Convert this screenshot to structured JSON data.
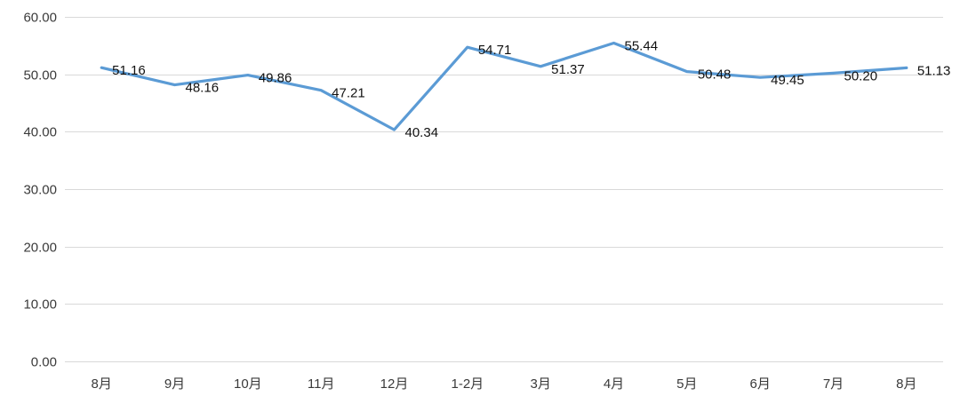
{
  "chart_data": {
    "type": "line",
    "title": "",
    "xlabel": "",
    "ylabel": "",
    "categories": [
      "8月",
      "9月",
      "10月",
      "11月",
      "12月",
      "1-2月",
      "3月",
      "4月",
      "5月",
      "6月",
      "7月",
      "8月"
    ],
    "series": [
      {
        "values": [
          51.16,
          48.16,
          49.86,
          47.21,
          40.34,
          54.71,
          51.37,
          55.44,
          50.48,
          49.45,
          50.2,
          51.13
        ],
        "labels": [
          "51.16",
          "48.16",
          "49.86",
          "47.21",
          "40.34",
          "54.71",
          "51.37",
          "55.44",
          "50.48",
          "49.45",
          "50.20",
          "51.13"
        ]
      }
    ],
    "ylim": [
      0,
      60
    ],
    "yticks": [
      0,
      10,
      20,
      30,
      40,
      50,
      60
    ],
    "ytick_labels": [
      "0.00",
      "10.00",
      "20.00",
      "30.00",
      "40.00",
      "50.00",
      "60.00"
    ],
    "grid": true,
    "legend": "none",
    "line_color": "#5b9bd5",
    "grid_color": "#d9d9d9"
  }
}
